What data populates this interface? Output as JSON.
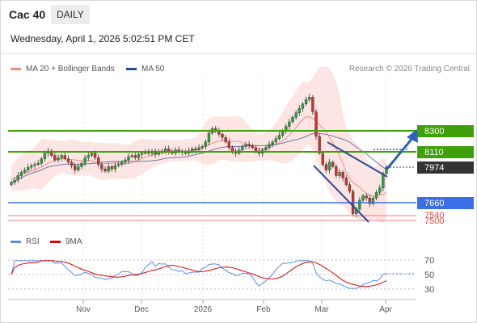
{
  "header": {
    "symbol": "Cac 40",
    "timeframe": "DAILY",
    "datetime": "Wednesday, April 1, 2026 5:02:51 PM CET"
  },
  "legend": [
    {
      "label": "MA 20 + Bollinger Bands",
      "color": "#f28b82"
    },
    {
      "label": "MA 50",
      "color": "#1f4e8c"
    }
  ],
  "credit": "Research © 2026 Trading Central",
  "indicator_legend": [
    {
      "label": "RSI",
      "color": "#5b8def"
    },
    {
      "label": "9MA",
      "color": "#e60000"
    }
  ],
  "chart_data": [
    {
      "type": "candlestick",
      "title": "Cac 40",
      "x_tick_labels": [
        "Nov",
        "Dec",
        "2026",
        "Feb",
        "Mar",
        "Apr"
      ],
      "series": [
        {
          "name": "Cac 40",
          "ohlc_shown_as": "daily candles"
        },
        {
          "name": "MA 20 + Bollinger Bands"
        },
        {
          "name": "MA 50"
        }
      ],
      "approximate_closes": [
        7840,
        7860,
        7900,
        7930,
        7950,
        7975,
        7990,
        8000,
        8010,
        8050,
        8100,
        8120,
        8080,
        8040,
        8060,
        8080,
        8050,
        8020,
        7990,
        7950,
        7980,
        8010,
        8060,
        8080,
        8100,
        8060,
        8000,
        7960,
        7940,
        7980,
        7960,
        7990,
        8000,
        8020,
        8040,
        8070,
        8080,
        8060,
        8090,
        8100,
        8110,
        8100,
        8120,
        8090,
        8110,
        8120,
        8140,
        8120,
        8100,
        8130,
        8120,
        8110,
        8100,
        8120,
        8140,
        8130,
        8150,
        8160,
        8200,
        8280,
        8320,
        8300,
        8270,
        8240,
        8200,
        8150,
        8120,
        8100,
        8130,
        8160,
        8180,
        8170,
        8150,
        8120,
        8100,
        8130,
        8150,
        8180,
        8200,
        8230,
        8260,
        8300,
        8340,
        8380,
        8420,
        8460,
        8500,
        8540,
        8580,
        8600,
        8470,
        8250,
        8100,
        8000,
        7950,
        8020,
        7980,
        7900,
        7930,
        7880,
        7820,
        7760,
        7560,
        7600,
        7680,
        7720,
        7700,
        7650,
        7700,
        7750,
        7790,
        7920,
        7974
      ],
      "price_levels": [
        {
          "label": "8300",
          "role": "resistance"
        },
        {
          "label": "8110",
          "role": "resistance"
        },
        {
          "label": "7974",
          "role": "last price"
        },
        {
          "label": "7660",
          "role": "support"
        },
        {
          "label": "7540",
          "role": "support"
        },
        {
          "label": "7500",
          "role": "support"
        }
      ],
      "annotations": [
        "falling wedge pattern",
        "bullish arrow toward 8300",
        "dotted projection to 8110"
      ],
      "grid": true
    },
    {
      "type": "line",
      "title": "RSI",
      "series": [
        {
          "name": "RSI"
        },
        {
          "name": "9MA"
        }
      ],
      "y_tick_labels": [
        "70",
        "50",
        "30"
      ],
      "ylim": [
        30,
        70
      ]
    }
  ]
}
